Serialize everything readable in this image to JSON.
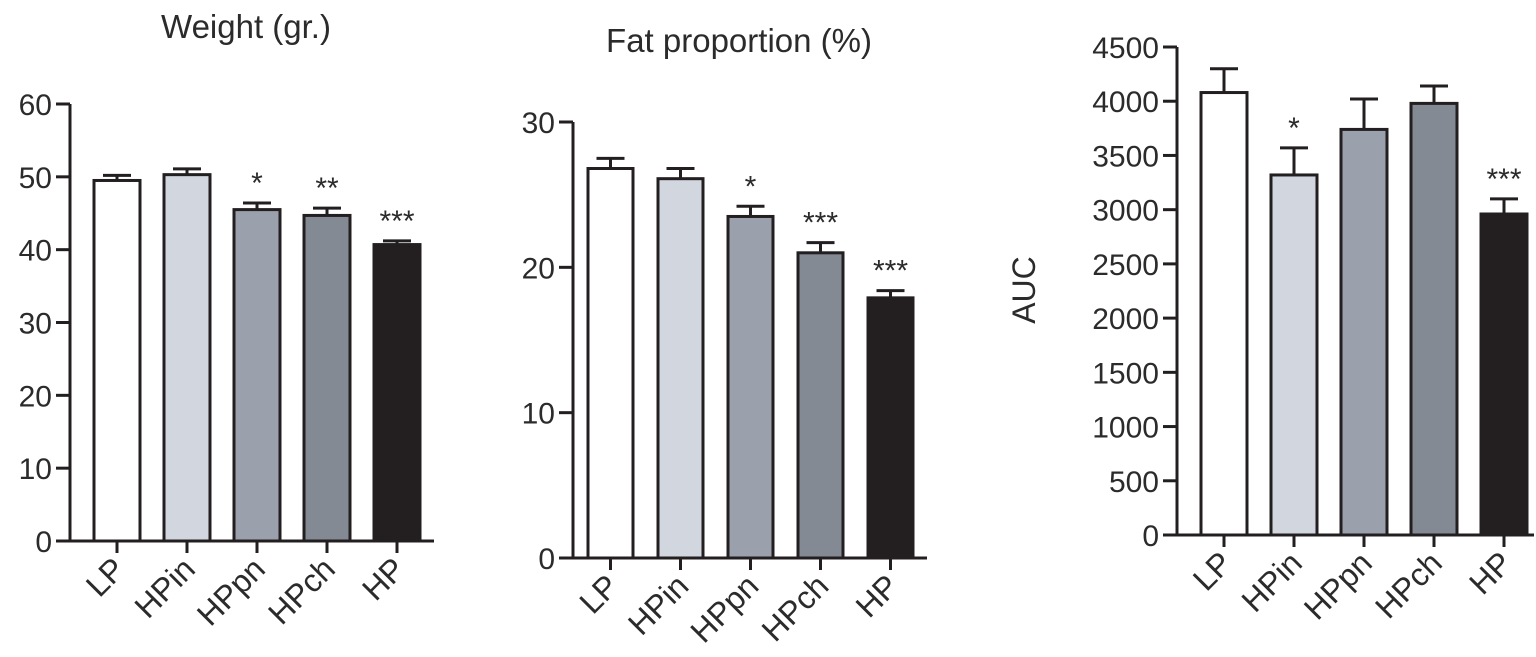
{
  "chart_data": [
    {
      "type": "bar",
      "title": "Weight (gr.)",
      "ylabel": "",
      "categories": [
        "LP",
        "HPin",
        "HPpn",
        "HPch",
        "HP"
      ],
      "values": [
        49.5,
        50.3,
        45.5,
        44.7,
        40.7
      ],
      "errors": [
        0.7,
        0.8,
        0.9,
        1.0,
        0.5
      ],
      "significance": [
        "",
        "",
        "*",
        "**",
        "***"
      ],
      "ylim": [
        0,
        60
      ],
      "yticks": [
        "0",
        "10",
        "20",
        "30",
        "40",
        "50",
        "60"
      ],
      "bar_colors": [
        "#ffffff",
        "#d2d6de",
        "#9aa1ad",
        "#838a93",
        "#231f20"
      ]
    },
    {
      "type": "bar",
      "title": "Fat proportion (%)",
      "ylabel": "",
      "categories": [
        "LP",
        "HPin",
        "HPpn",
        "HPch",
        "HP"
      ],
      "values": [
        26.8,
        26.1,
        23.5,
        21.0,
        17.9
      ],
      "errors": [
        0.7,
        0.7,
        0.7,
        0.7,
        0.5
      ],
      "significance": [
        "",
        "",
        "*",
        "***",
        "***"
      ],
      "ylim": [
        0,
        30
      ],
      "yticks": [
        "0",
        "10",
        "20",
        "30"
      ],
      "bar_colors": [
        "#ffffff",
        "#d2d6de",
        "#9aa1ad",
        "#838a93",
        "#231f20"
      ]
    },
    {
      "type": "bar",
      "title": "",
      "ylabel": "AUC",
      "categories": [
        "LP",
        "HPin",
        "HPpn",
        "HPch",
        "HP"
      ],
      "values": [
        4080,
        3320,
        3740,
        3980,
        2960
      ],
      "errors": [
        220,
        250,
        280,
        160,
        140
      ],
      "significance": [
        "",
        "*",
        "",
        "",
        "***"
      ],
      "ylim": [
        0,
        4500
      ],
      "yticks": [
        "0",
        "500",
        "1000",
        "1500",
        "2000",
        "2500",
        "3000",
        "3500",
        "4000",
        "4500"
      ],
      "bar_colors": [
        "#ffffff",
        "#d2d6de",
        "#9aa1ad",
        "#838a93",
        "#231f20"
      ]
    }
  ]
}
